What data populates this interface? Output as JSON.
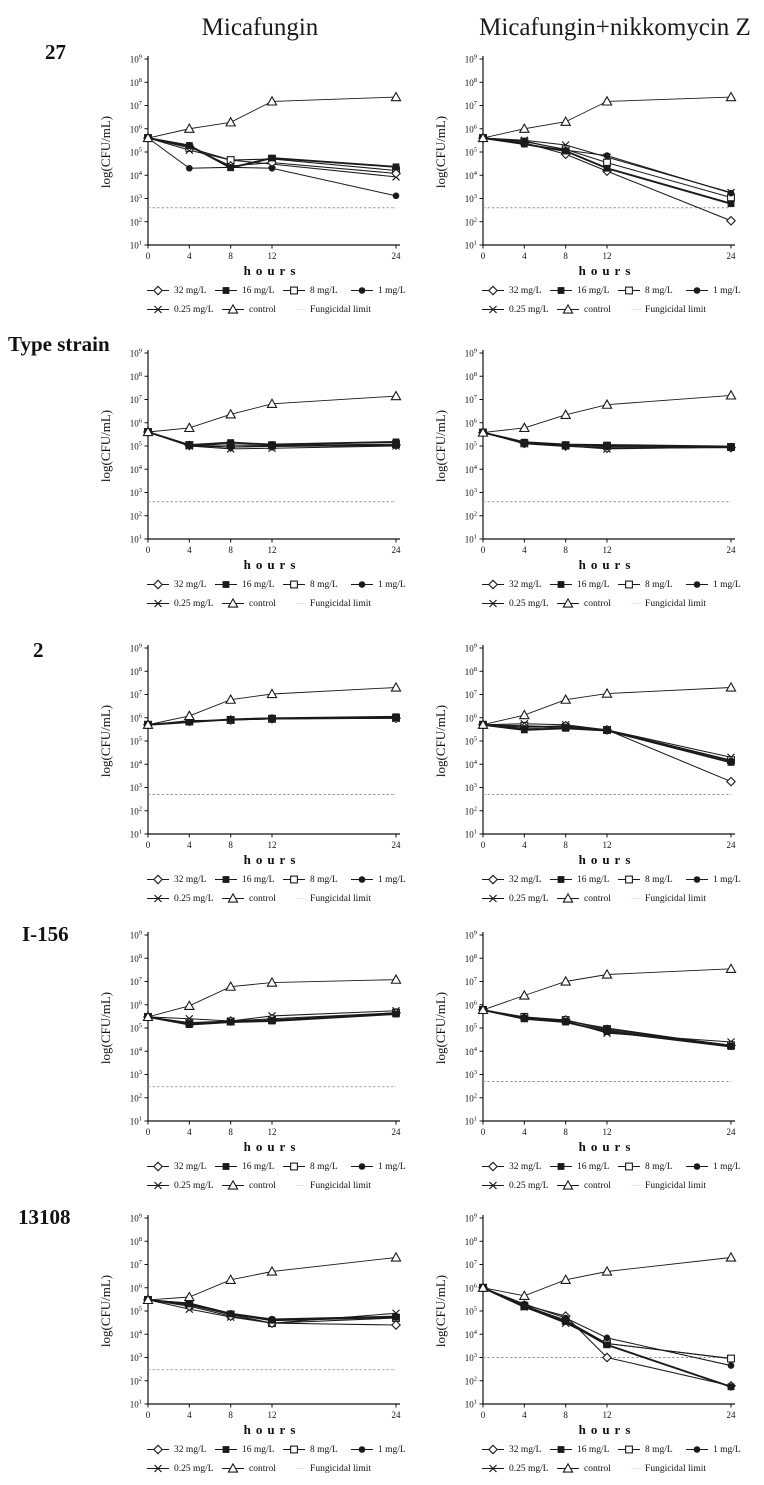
{
  "figure": {
    "description": "Time-kill curves of micafungin alone and micafungin plus nikkomycin Z against five strains",
    "columns": [
      {
        "title": "Micafungin"
      },
      {
        "title": "Micafungin+nikkomycin Z"
      }
    ],
    "rows": [
      {
        "label": "27"
      },
      {
        "label": "Type strain"
      },
      {
        "label": "2"
      },
      {
        "label": "I-156"
      },
      {
        "label": "13108"
      }
    ]
  },
  "axis": {
    "ylabel": "log(CFU/mL)",
    "xlabel": "hours",
    "x_ticks": [
      0,
      4,
      8,
      12,
      24
    ],
    "y_tick_exponents": [
      1,
      2,
      3,
      4,
      5,
      6,
      7,
      8,
      9
    ],
    "xlim": [
      0,
      24
    ],
    "ylim": [
      10.0,
      1000000000.0
    ],
    "y_scale": "log"
  },
  "legend": {
    "items": [
      {
        "label": "32 mg/L",
        "marker": "open-diamond"
      },
      {
        "label": "16 mg/L",
        "marker": "filled-square"
      },
      {
        "label": "8 mg/L",
        "marker": "open-square"
      },
      {
        "label": "1 mg/L",
        "marker": "filled-circle"
      },
      {
        "label": "0.25 mg/L",
        "marker": "x-cross"
      },
      {
        "label": "control",
        "marker": "open-triangle"
      },
      {
        "label": "Fungicidal limit",
        "marker": "dashed-line"
      }
    ]
  },
  "colors": {
    "line": "#1a1a1a",
    "fungicidal_limit": "#999999",
    "background": "#ffffff"
  },
  "chart_data": [
    {
      "type": "line",
      "strain": "27",
      "treatment": "Micafungin",
      "x": [
        0,
        4,
        8,
        12,
        24
      ],
      "fungicidal_limit": 400.0,
      "series": [
        {
          "name": "32 mg/L",
          "marker": "open-diamond",
          "values": [
            400000.0,
            170000.0,
            25000.0,
            35000.0,
            12000.0
          ]
        },
        {
          "name": "16 mg/L",
          "marker": "filled-square",
          "values": [
            400000.0,
            190000.0,
            21000.0,
            55000.0,
            23000.0
          ]
        },
        {
          "name": "8 mg/L",
          "marker": "open-square",
          "values": [
            400000.0,
            150000.0,
            45000.0,
            50000.0,
            16000.0
          ]
        },
        {
          "name": "1 mg/L",
          "marker": "filled-circle",
          "values": [
            400000.0,
            20000.0,
            22000.0,
            20000.0,
            1300.0
          ]
        },
        {
          "name": "0.25 mg/L",
          "marker": "x-cross",
          "values": [
            400000.0,
            120000.0,
            45000.0,
            30000.0,
            8500.0
          ]
        },
        {
          "name": "control",
          "marker": "open-triangle",
          "values": [
            400000.0,
            1000000.0,
            1900000.0,
            15000000.0,
            23000000.0
          ]
        }
      ]
    },
    {
      "type": "line",
      "strain": "27",
      "treatment": "Micafungin+nikkomycin Z",
      "x": [
        0,
        4,
        8,
        12,
        24
      ],
      "fungicidal_limit": 400.0,
      "series": [
        {
          "name": "32 mg/L",
          "marker": "open-diamond",
          "values": [
            400000.0,
            250000.0,
            80000.0,
            15000.0,
            110.0
          ]
        },
        {
          "name": "16 mg/L",
          "marker": "filled-square",
          "values": [
            400000.0,
            220000.0,
            110000.0,
            20000.0,
            600.0
          ]
        },
        {
          "name": "8 mg/L",
          "marker": "open-square",
          "values": [
            400000.0,
            280000.0,
            130000.0,
            35000.0,
            1100.0
          ]
        },
        {
          "name": "1 mg/L",
          "marker": "filled-circle",
          "values": [
            400000.0,
            300000.0,
            120000.0,
            70000.0,
            1700.0
          ]
        },
        {
          "name": "0.25 mg/L",
          "marker": "x-cross",
          "values": [
            400000.0,
            320000.0,
            200000.0,
            60000.0,
            1800.0
          ]
        },
        {
          "name": "control",
          "marker": "open-triangle",
          "values": [
            400000.0,
            1000000.0,
            2000000.0,
            15000000.0,
            23000000.0
          ]
        }
      ]
    },
    {
      "type": "line",
      "strain": "Type strain",
      "treatment": "Micafungin",
      "x": [
        0,
        4,
        8,
        12,
        24
      ],
      "fungicidal_limit": 400.0,
      "series": [
        {
          "name": "32 mg/L",
          "marker": "open-diamond",
          "values": [
            400000.0,
            105000.0,
            90000.0,
            100000.0,
            110000.0
          ]
        },
        {
          "name": "16 mg/L",
          "marker": "filled-square",
          "values": [
            400000.0,
            110000.0,
            140000.0,
            115000.0,
            150000.0
          ]
        },
        {
          "name": "8 mg/L",
          "marker": "open-square",
          "values": [
            400000.0,
            110000.0,
            110000.0,
            105000.0,
            120000.0
          ]
        },
        {
          "name": "1 mg/L",
          "marker": "filled-circle",
          "values": [
            400000.0,
            100000.0,
            90000.0,
            95000.0,
            105000.0
          ]
        },
        {
          "name": "0.25 mg/L",
          "marker": "x-cross",
          "values": [
            400000.0,
            100000.0,
            75000.0,
            80000.0,
            100000.0
          ]
        },
        {
          "name": "control",
          "marker": "open-triangle",
          "values": [
            400000.0,
            600000.0,
            2300000.0,
            6500000.0,
            14000000.0
          ]
        }
      ]
    },
    {
      "type": "line",
      "strain": "Type strain",
      "treatment": "Micafungin+nikkomycin Z",
      "x": [
        0,
        4,
        8,
        12,
        24
      ],
      "fungicidal_limit": 400.0,
      "series": [
        {
          "name": "32 mg/L",
          "marker": "open-diamond",
          "values": [
            380000.0,
            130000.0,
            100000.0,
            80000.0,
            85000.0
          ]
        },
        {
          "name": "16 mg/L",
          "marker": "filled-square",
          "values": [
            380000.0,
            145000.0,
            115000.0,
            110000.0,
            95000.0
          ]
        },
        {
          "name": "8 mg/L",
          "marker": "open-square",
          "values": [
            380000.0,
            130000.0,
            105000.0,
            100000.0,
            90000.0
          ]
        },
        {
          "name": "1 mg/L",
          "marker": "filled-circle",
          "values": [
            380000.0,
            125000.0,
            95000.0,
            90000.0,
            85000.0
          ]
        },
        {
          "name": "0.25 mg/L",
          "marker": "x-cross",
          "values": [
            380000.0,
            130000.0,
            100000.0,
            75000.0,
            90000.0
          ]
        },
        {
          "name": "control",
          "marker": "open-triangle",
          "values": [
            380000.0,
            600000.0,
            2200000.0,
            6000000.0,
            15000000.0
          ]
        }
      ]
    },
    {
      "type": "line",
      "strain": "2",
      "treatment": "Micafungin",
      "x": [
        0,
        4,
        8,
        12,
        24
      ],
      "fungicidal_limit": 500.0,
      "series": [
        {
          "name": "32 mg/L",
          "marker": "open-diamond",
          "values": [
            500000.0,
            700000.0,
            800000.0,
            900000.0,
            950000.0
          ]
        },
        {
          "name": "16 mg/L",
          "marker": "filled-square",
          "values": [
            500000.0,
            650000.0,
            850000.0,
            950000.0,
            1100000.0
          ]
        },
        {
          "name": "8 mg/L",
          "marker": "open-square",
          "values": [
            500000.0,
            700000.0,
            800000.0,
            900000.0,
            1000000.0
          ]
        },
        {
          "name": "1 mg/L",
          "marker": "filled-circle",
          "values": [
            500000.0,
            650000.0,
            850000.0,
            900000.0,
            1000000.0
          ]
        },
        {
          "name": "0.25 mg/L",
          "marker": "x-cross",
          "values": [
            500000.0,
            750000.0,
            800000.0,
            900000.0,
            950000.0
          ]
        },
        {
          "name": "control",
          "marker": "open-triangle",
          "values": [
            500000.0,
            1200000.0,
            6000000.0,
            10500000.0,
            20000000.0
          ]
        }
      ]
    },
    {
      "type": "line",
      "strain": "2",
      "treatment": "Micafungin+nikkomycin Z",
      "x": [
        0,
        4,
        8,
        12,
        24
      ],
      "fungicidal_limit": 500.0,
      "series": [
        {
          "name": "32 mg/L",
          "marker": "open-diamond",
          "values": [
            500000.0,
            400000.0,
            450000.0,
            300000.0,
            1800.0
          ]
        },
        {
          "name": "16 mg/L",
          "marker": "filled-square",
          "values": [
            500000.0,
            300000.0,
            350000.0,
            280000.0,
            12000.0
          ]
        },
        {
          "name": "8 mg/L",
          "marker": "open-square",
          "values": [
            500000.0,
            450000.0,
            400000.0,
            300000.0,
            15000.0
          ]
        },
        {
          "name": "1 mg/L",
          "marker": "filled-circle",
          "values": [
            500000.0,
            350000.0,
            400000.0,
            300000.0,
            14000.0
          ]
        },
        {
          "name": "0.25 mg/L",
          "marker": "x-cross",
          "values": [
            500000.0,
            550000.0,
            500000.0,
            300000.0,
            20000.0
          ]
        },
        {
          "name": "control",
          "marker": "open-triangle",
          "values": [
            500000.0,
            1300000.0,
            6000000.0,
            11000000.0,
            20000000.0
          ]
        }
      ]
    },
    {
      "type": "line",
      "strain": "I-156",
      "treatment": "Micafungin",
      "x": [
        0,
        4,
        8,
        12,
        24
      ],
      "fungicidal_limit": 300.0,
      "series": [
        {
          "name": "32 mg/L",
          "marker": "open-diamond",
          "values": [
            300000.0,
            170000.0,
            200000.0,
            250000.0,
            450000.0
          ]
        },
        {
          "name": "16 mg/L",
          "marker": "filled-square",
          "values": [
            300000.0,
            140000.0,
            180000.0,
            200000.0,
            400000.0
          ]
        },
        {
          "name": "8 mg/L",
          "marker": "open-square",
          "values": [
            300000.0,
            160000.0,
            190000.0,
            220000.0,
            450000.0
          ]
        },
        {
          "name": "1 mg/L",
          "marker": "filled-circle",
          "values": [
            300000.0,
            160000.0,
            180000.0,
            220000.0,
            400000.0
          ]
        },
        {
          "name": "0.25 mg/L",
          "marker": "x-cross",
          "values": [
            300000.0,
            250000.0,
            200000.0,
            330000.0,
            550000.0
          ]
        },
        {
          "name": "control",
          "marker": "open-triangle",
          "values": [
            300000.0,
            900000.0,
            6000000.0,
            9000000.0,
            12000000.0
          ]
        }
      ]
    },
    {
      "type": "line",
      "strain": "I-156",
      "treatment": "Micafungin+nikkomycin Z",
      "x": [
        0,
        4,
        8,
        12,
        24
      ],
      "fungicidal_limit": 500.0,
      "series": [
        {
          "name": "32 mg/L",
          "marker": "open-diamond",
          "values": [
            600000.0,
            280000.0,
            220000.0,
            80000.0,
            18000.0
          ]
        },
        {
          "name": "16 mg/L",
          "marker": "filled-square",
          "values": [
            600000.0,
            250000.0,
            180000.0,
            70000.0,
            16000.0
          ]
        },
        {
          "name": "8 mg/L",
          "marker": "open-square",
          "values": [
            600000.0,
            300000.0,
            220000.0,
            90000.0,
            18000.0
          ]
        },
        {
          "name": "1 mg/L",
          "marker": "filled-circle",
          "values": [
            600000.0,
            280000.0,
            200000.0,
            100000.0,
            17000.0
          ]
        },
        {
          "name": "0.25 mg/L",
          "marker": "x-cross",
          "values": [
            600000.0,
            250000.0,
            200000.0,
            60000.0,
            25000.0
          ]
        },
        {
          "name": "control",
          "marker": "open-triangle",
          "values": [
            600000.0,
            2500000.0,
            10000000.0,
            20000000.0,
            35000000.0
          ]
        }
      ]
    },
    {
      "type": "line",
      "strain": "13108",
      "treatment": "Micafungin",
      "x": [
        0,
        4,
        8,
        12,
        24
      ],
      "fungicidal_limit": 300.0,
      "series": [
        {
          "name": "32 mg/L",
          "marker": "open-diamond",
          "values": [
            300000.0,
            160000.0,
            60000.0,
            30000.0,
            25000.0
          ]
        },
        {
          "name": "16 mg/L",
          "marker": "filled-square",
          "values": [
            300000.0,
            200000.0,
            75000.0,
            40000.0,
            55000.0
          ]
        },
        {
          "name": "8 mg/L",
          "marker": "open-square",
          "values": [
            300000.0,
            180000.0,
            70000.0,
            30000.0,
            50000.0
          ]
        },
        {
          "name": "1 mg/L",
          "marker": "filled-circle",
          "values": [
            300000.0,
            220000.0,
            80000.0,
            45000.0,
            60000.0
          ]
        },
        {
          "name": "0.25 mg/L",
          "marker": "x-cross",
          "values": [
            300000.0,
            120000.0,
            55000.0,
            30000.0,
            80000.0
          ]
        },
        {
          "name": "control",
          "marker": "open-triangle",
          "values": [
            300000.0,
            400000.0,
            2200000.0,
            5000000.0,
            20000000.0
          ]
        }
      ]
    },
    {
      "type": "line",
      "strain": "13108",
      "treatment": "Micafungin+nikkomycin Z",
      "x": [
        0,
        4,
        8,
        12,
        24
      ],
      "fungicidal_limit": 1000.0,
      "series": [
        {
          "name": "32 mg/L",
          "marker": "open-diamond",
          "values": [
            1000000.0,
            180000.0,
            60000.0,
            1000.0,
            60.0
          ]
        },
        {
          "name": "16 mg/L",
          "marker": "filled-square",
          "values": [
            1000000.0,
            150000.0,
            35000.0,
            3500.0,
            55.0
          ]
        },
        {
          "name": "8 mg/L",
          "marker": "open-square",
          "values": [
            1000000.0,
            170000.0,
            40000.0,
            4000.0,
            900.0
          ]
        },
        {
          "name": "1 mg/L",
          "marker": "filled-circle",
          "values": [
            1000000.0,
            200000.0,
            50000.0,
            7000.0,
            450.0
          ]
        },
        {
          "name": "0.25 mg/L",
          "marker": "x-cross",
          "values": [
            1000000.0,
            150000.0,
            30000.0,
            4000.0,
            900.0
          ]
        },
        {
          "name": "control",
          "marker": "open-triangle",
          "values": [
            1000000.0,
            450000.0,
            2200000.0,
            5000000.0,
            20000000.0
          ]
        }
      ]
    }
  ]
}
